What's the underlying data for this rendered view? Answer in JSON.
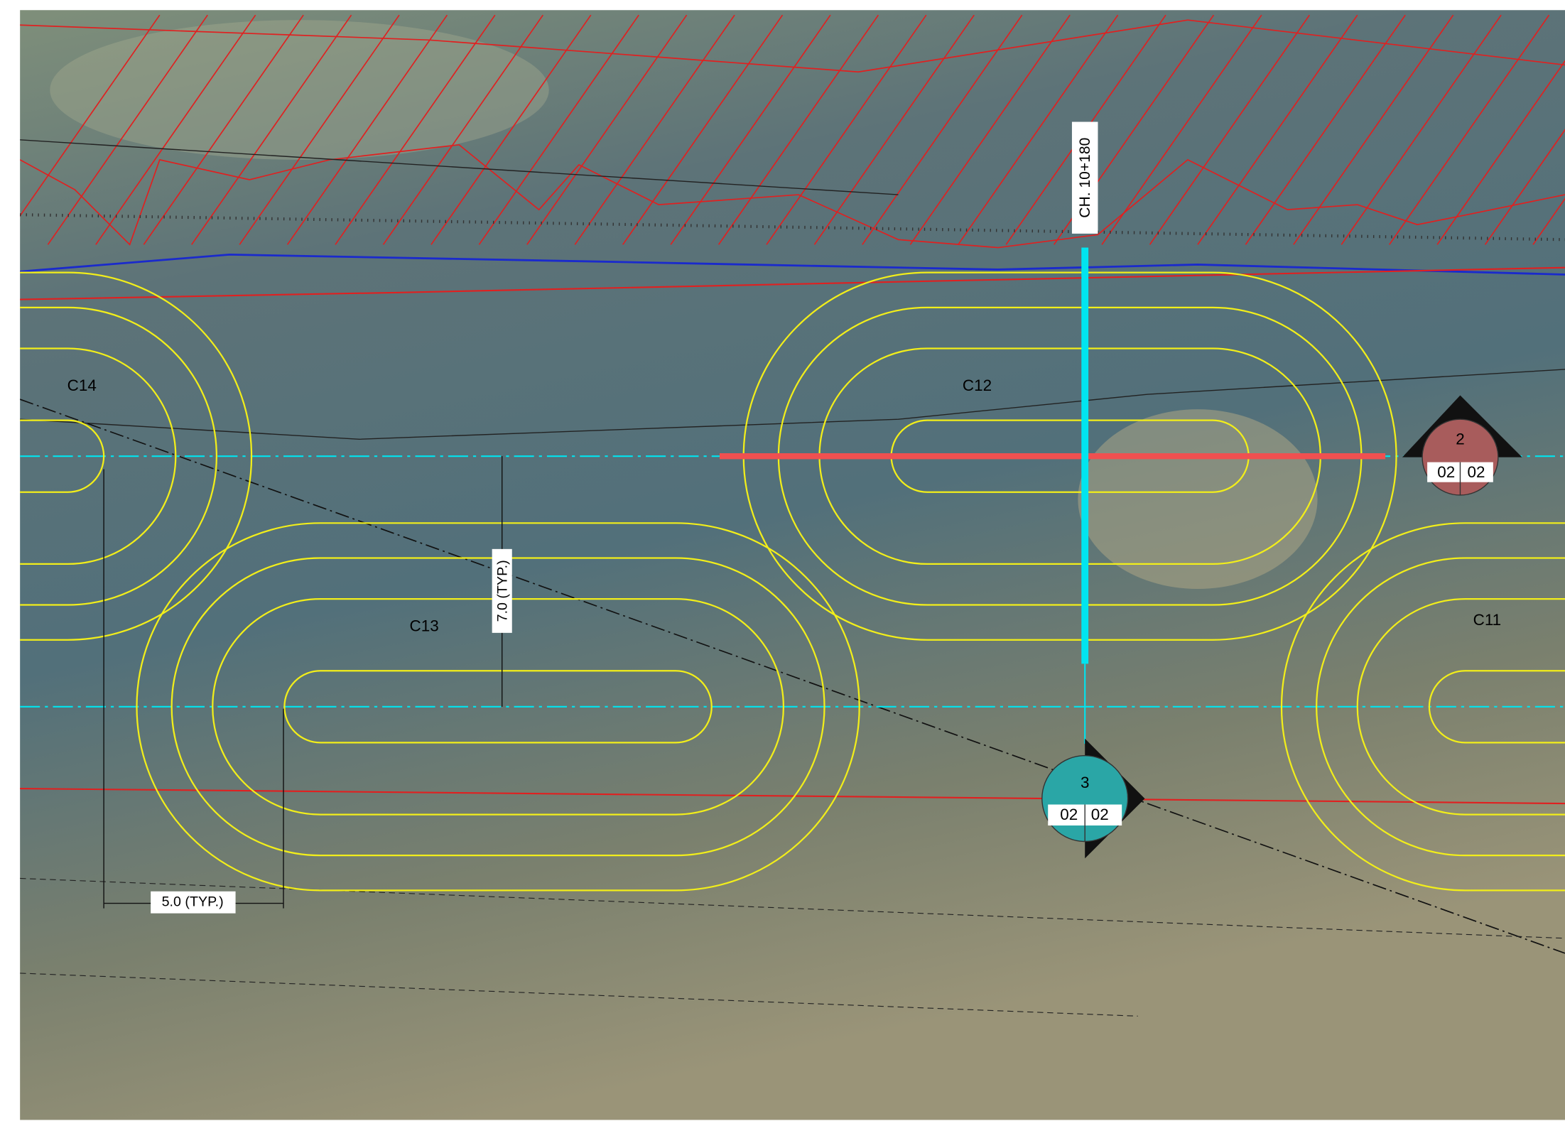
{
  "drawing": {
    "chainage": "CH. 10+180",
    "dimensions": [
      "7.0 (TYP.)",
      "5.0 (TYP.)"
    ],
    "cells": [
      "C14",
      "C13",
      "C12",
      "C11"
    ],
    "sections": [
      {
        "number": "2",
        "sheet_left": "02",
        "sheet_right": "02"
      },
      {
        "number": "3",
        "sheet_left": "02",
        "sheet_right": "02"
      }
    ]
  }
}
